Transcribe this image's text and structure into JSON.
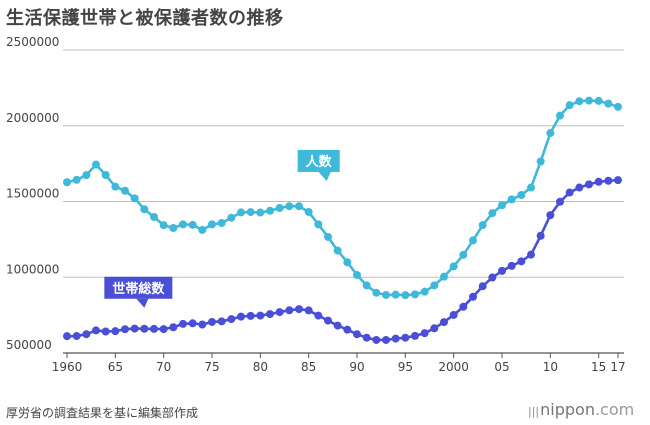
{
  "chart_data": {
    "type": "line",
    "title": "生活保護世帯と被保護者数の推移",
    "source": "厚労省の調査結果を基に編集部作成",
    "brand": "nippon.com",
    "brand_name": "nippon",
    "brand_suffix": ".com",
    "xlabel": "",
    "ylabel": "",
    "ylim": [
      500000,
      2500000
    ],
    "yticks": [
      "500000",
      "1000000",
      "1500000",
      "2000000",
      "2500000"
    ],
    "grid": true,
    "xticks": [
      {
        "year": 1960,
        "label": "1960"
      },
      {
        "year": 1965,
        "label": "65"
      },
      {
        "year": 1970,
        "label": "70"
      },
      {
        "year": 1975,
        "label": "75"
      },
      {
        "year": 1980,
        "label": "80"
      },
      {
        "year": 1985,
        "label": "85"
      },
      {
        "year": 1990,
        "label": "90"
      },
      {
        "year": 1995,
        "label": "95"
      },
      {
        "year": 2000,
        "label": "2000"
      },
      {
        "year": 2005,
        "label": "05"
      },
      {
        "year": 2010,
        "label": "10"
      },
      {
        "year": 2015,
        "label": "15"
      },
      {
        "year": 2017,
        "label": "17"
      }
    ],
    "x": [
      1960,
      1961,
      1962,
      1963,
      1964,
      1965,
      1966,
      1967,
      1968,
      1969,
      1970,
      1971,
      1972,
      1973,
      1974,
      1975,
      1976,
      1977,
      1978,
      1979,
      1980,
      1981,
      1982,
      1983,
      1984,
      1985,
      1986,
      1987,
      1988,
      1989,
      1990,
      1991,
      1992,
      1993,
      1994,
      1995,
      1996,
      1997,
      1998,
      1999,
      2000,
      2001,
      2002,
      2003,
      2004,
      2005,
      2006,
      2007,
      2008,
      2009,
      2010,
      2011,
      2012,
      2013,
      2014,
      2015,
      2016,
      2017
    ],
    "series": [
      {
        "name": "人数",
        "color": "#3fb8d9",
        "label_year": 1985,
        "values": [
          1627000,
          1643000,
          1674000,
          1744000,
          1675000,
          1598000,
          1571000,
          1521000,
          1449000,
          1398000,
          1344000,
          1325000,
          1349000,
          1346000,
          1312000,
          1349000,
          1358000,
          1393000,
          1428000,
          1430000,
          1427000,
          1439000,
          1457000,
          1469000,
          1469000,
          1431000,
          1349000,
          1266000,
          1176000,
          1099000,
          1015000,
          946000,
          898000,
          883000,
          885000,
          882000,
          887000,
          905000,
          946000,
          1004000,
          1072000,
          1148000,
          1243000,
          1344000,
          1423000,
          1475000,
          1514000,
          1543000,
          1592000,
          1764000,
          1952000,
          2067000,
          2136000,
          2162000,
          2166000,
          2164000,
          2146000,
          2125000
        ]
      },
      {
        "name": "世帯総数",
        "color": "#4a4fd6",
        "label_year": 1968,
        "values": [
          611000,
          612000,
          624000,
          649000,
          642000,
          644000,
          657000,
          661000,
          660000,
          659000,
          658000,
          670000,
          692000,
          696000,
          688000,
          705000,
          709000,
          724000,
          740000,
          745000,
          747000,
          757000,
          770000,
          782000,
          790000,
          781000,
          747000,
          714000,
          681000,
          654000,
          624000,
          601000,
          586000,
          586000,
          595000,
          601000,
          613000,
          631000,
          663000,
          704000,
          751000,
          805000,
          871000,
          941000,
          998000,
          1042000,
          1075000,
          1105000,
          1149000,
          1274000,
          1410000,
          1498000,
          1559000,
          1592000,
          1613000,
          1630000,
          1637000,
          1641000
        ]
      }
    ]
  }
}
